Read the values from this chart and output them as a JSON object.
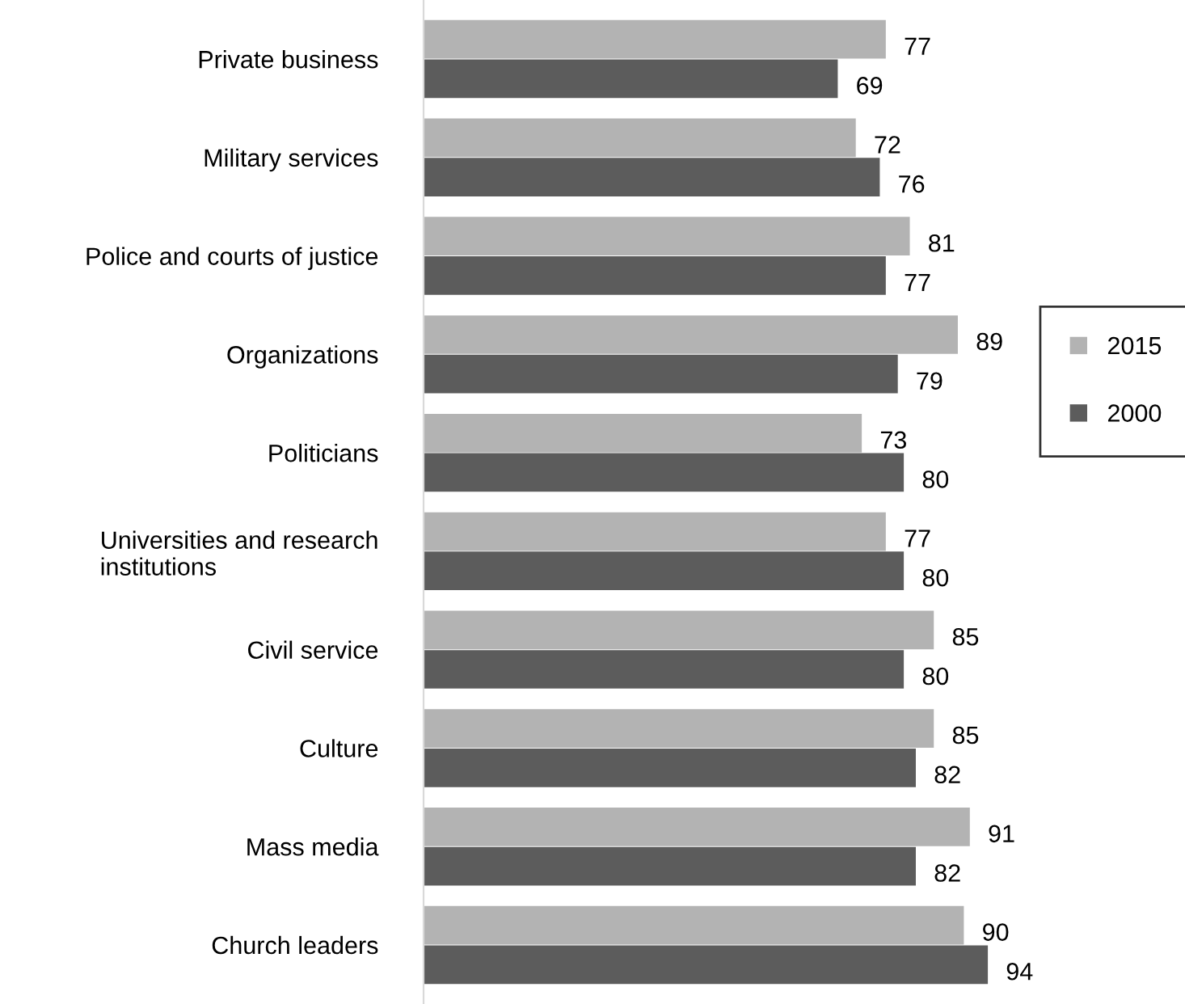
{
  "chart_data": {
    "type": "bar",
    "orientation": "horizontal",
    "categories": [
      "Private business",
      "Military services",
      "Police and courts of justice",
      "Organizations",
      "Politicians",
      "Universities and research\ninstitutions",
      "Civil service",
      "Culture",
      "Mass media",
      "Church leaders"
    ],
    "series": [
      {
        "name": "2015",
        "color": "#b3b3b3",
        "values": [
          77,
          72,
          81,
          89,
          73,
          77,
          85,
          85,
          91,
          90
        ]
      },
      {
        "name": "2000",
        "color": "#5c5c5c",
        "values": [
          69,
          76,
          77,
          79,
          80,
          80,
          80,
          82,
          82,
          94
        ]
      }
    ],
    "data_labels": true,
    "legend": "right",
    "grid": false,
    "tick_labels": "y"
  }
}
